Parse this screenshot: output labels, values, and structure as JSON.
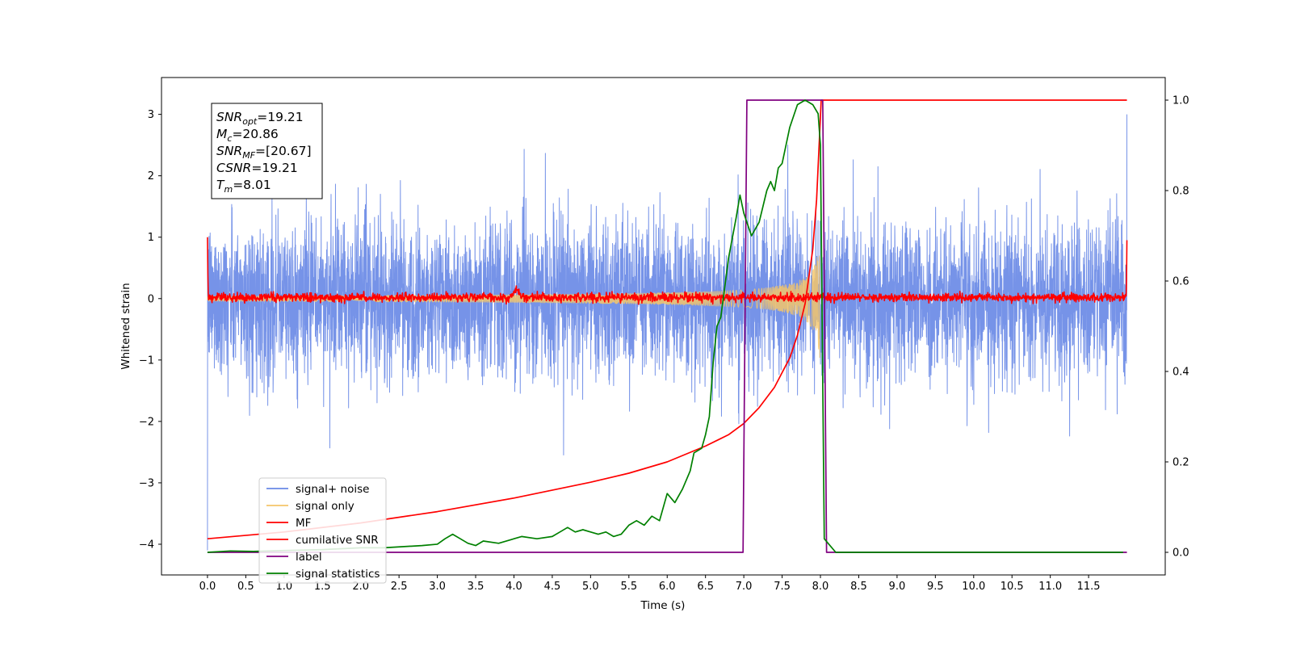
{
  "chart_data": {
    "type": "line",
    "xlabel": "Time (s)",
    "ylabel": "Whitened strain",
    "xlim": [
      -0.6,
      12.5
    ],
    "ylim": [
      -4.5,
      3.6
    ],
    "y2lim": [
      -0.05,
      1.05
    ],
    "x_ticks": [
      0.0,
      0.5,
      1.0,
      1.5,
      2.0,
      2.5,
      3.0,
      3.5,
      4.0,
      4.5,
      5.0,
      5.5,
      6.0,
      6.5,
      7.0,
      7.5,
      8.0,
      8.5,
      9.0,
      9.5,
      10.0,
      10.5,
      11.0,
      11.5
    ],
    "x_tick_labels": [
      "0.0",
      "0.5",
      "1.0",
      "1.5",
      "2.0",
      "2.5",
      "3.0",
      "3.5",
      "4.0",
      "4.5",
      "5.0",
      "5.5",
      "6.0",
      "6.5",
      "7.0",
      "7.5",
      "8.0",
      "8.5",
      "9.0",
      "9.5",
      "10.0",
      "10.5",
      "11.0",
      "11.5"
    ],
    "y_ticks": [
      -4,
      -3,
      -2,
      -1,
      0,
      1,
      2,
      3
    ],
    "y_tick_labels": [
      "−4",
      "−3",
      "−2",
      "−1",
      "0",
      "1",
      "2",
      "3"
    ],
    "y2_ticks": [
      0.0,
      0.2,
      0.4,
      0.6,
      0.8,
      1.0
    ],
    "y2_tick_labels": [
      "0.0",
      "0.2",
      "0.4",
      "0.6",
      "0.8",
      "1.0"
    ],
    "grid": false,
    "legend_placement": "lower-left",
    "annotation": [
      {
        "sym": "SNR",
        "sub": "opt",
        "val": "=19.21"
      },
      {
        "sym": "M",
        "sub": "c",
        "val": "=20.86"
      },
      {
        "sym": "SNR",
        "sub": "MF",
        "val": "=[20.67]"
      },
      {
        "sym": "CSNR",
        "sub": "",
        "val": "=19.21"
      },
      {
        "sym": "T",
        "sub": "m",
        "val": "=8.01"
      }
    ],
    "series": [
      {
        "name": "signal+ noise",
        "color": "#6a8ae6",
        "axis": "left",
        "kind": "noise",
        "t_range": [
          0.0,
          12.0
        ],
        "envelope": [
          -2.6,
          2.1
        ]
      },
      {
        "name": "signal only",
        "color": "#f5c56a",
        "axis": "left",
        "kind": "chirp",
        "t_range": [
          0.0,
          8.01
        ],
        "peak_amplitude": 1.1
      },
      {
        "name": "MF",
        "color": "#ff0000",
        "axis": "left",
        "kind": "matched-filter",
        "t_range": [
          0.0,
          12.0
        ],
        "start_value": 1.0,
        "end_value": 0.95
      },
      {
        "name": "cumilative SNR",
        "color": "#ff0000",
        "axis": "right",
        "x": [
          0.0,
          1.0,
          2.0,
          3.0,
          4.0,
          5.0,
          5.5,
          6.0,
          6.5,
          6.8,
          7.0,
          7.2,
          7.4,
          7.6,
          7.7,
          7.8,
          7.9,
          7.95,
          8.01,
          9.0,
          10.0,
          11.0,
          12.0
        ],
        "y": [
          0.03,
          0.045,
          0.065,
          0.09,
          0.12,
          0.155,
          0.175,
          0.2,
          0.235,
          0.26,
          0.285,
          0.32,
          0.365,
          0.43,
          0.48,
          0.55,
          0.67,
          0.78,
          1.0,
          1.0,
          1.0,
          1.0,
          1.0
        ]
      },
      {
        "name": "label",
        "color": "#800080",
        "axis": "right",
        "x": [
          0.0,
          6.99,
          7.04,
          8.03,
          8.08,
          12.0
        ],
        "y": [
          0.0,
          0.0,
          1.0,
          1.0,
          0.0,
          0.0
        ]
      },
      {
        "name": "signal statistics",
        "color": "#008000",
        "axis": "right",
        "x": [
          0.0,
          0.3,
          0.6,
          1.0,
          1.5,
          2.0,
          2.3,
          2.8,
          3.0,
          3.1,
          3.2,
          3.3,
          3.4,
          3.5,
          3.6,
          3.8,
          4.0,
          4.1,
          4.3,
          4.5,
          4.6,
          4.7,
          4.8,
          4.9,
          5.0,
          5.1,
          5.2,
          5.3,
          5.4,
          5.5,
          5.6,
          5.7,
          5.8,
          5.9,
          6.0,
          6.1,
          6.2,
          6.3,
          6.35,
          6.45,
          6.5,
          6.55,
          6.6,
          6.65,
          6.7,
          6.8,
          6.9,
          6.95,
          7.0,
          7.1,
          7.2,
          7.3,
          7.35,
          7.4,
          7.45,
          7.5,
          7.55,
          7.6,
          7.7,
          7.8,
          7.9,
          7.97,
          8.0,
          8.05,
          8.1,
          8.2,
          8.5,
          9.0,
          10.0,
          11.0,
          11.5,
          11.95
        ],
        "y": [
          0.0,
          0.003,
          0.002,
          0.004,
          0.006,
          0.01,
          0.01,
          0.015,
          0.018,
          0.03,
          0.04,
          0.03,
          0.02,
          0.015,
          0.025,
          0.02,
          0.03,
          0.035,
          0.03,
          0.035,
          0.045,
          0.055,
          0.045,
          0.05,
          0.045,
          0.04,
          0.045,
          0.035,
          0.04,
          0.06,
          0.07,
          0.06,
          0.08,
          0.07,
          0.13,
          0.11,
          0.14,
          0.18,
          0.22,
          0.23,
          0.26,
          0.3,
          0.42,
          0.5,
          0.52,
          0.65,
          0.74,
          0.79,
          0.75,
          0.7,
          0.73,
          0.8,
          0.82,
          0.8,
          0.85,
          0.86,
          0.9,
          0.94,
          0.99,
          1.0,
          0.99,
          0.97,
          0.9,
          0.03,
          0.02,
          0.0,
          0.0,
          0.0,
          0.0,
          0.0,
          0.0,
          0.0
        ]
      }
    ]
  }
}
